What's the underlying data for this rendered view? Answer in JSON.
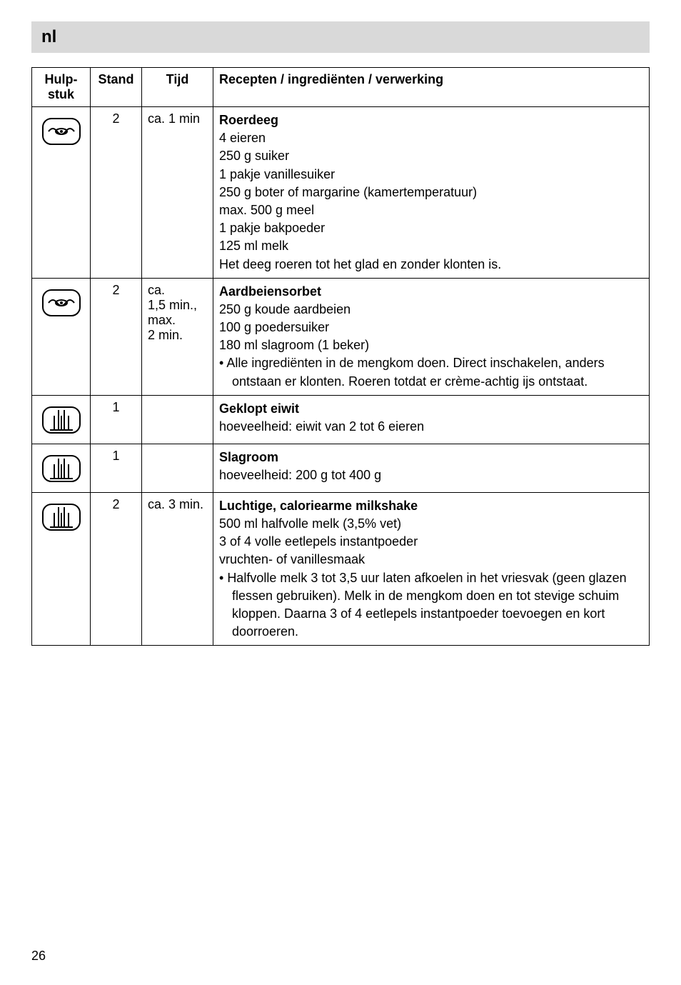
{
  "header": {
    "lang_label": "nl"
  },
  "table": {
    "headers": {
      "hulpstuk": "Hulp-\nstuk",
      "stand": "Stand",
      "tijd": "Tijd",
      "recepten": "Recepten / ingrediënten / verwerking"
    },
    "rows": [
      {
        "icon": "mixer-icon",
        "stand": "2",
        "tijd": "ca. 1 min",
        "title": "Roerdeeg",
        "lines": [
          "4 eieren",
          "250 g suiker",
          "1 pakje vanillesuiker",
          "250 g boter of margarine (kamertemperatuur)",
          "max. 500 g meel",
          "1 pakje bakpoeder",
          "125 ml melk",
          "Het deeg roeren tot het glad en zonder klonten is."
        ],
        "bullets": []
      },
      {
        "icon": "mixer-icon",
        "stand": "2",
        "tijd": "ca.\n1,5 min.,\nmax.\n2 min.",
        "title": "Aardbeiensorbet",
        "lines": [
          "250 g koude aardbeien",
          "100 g poedersuiker",
          "180 ml slagroom (1 beker)"
        ],
        "bullets": [
          "Alle ingrediënten in de mengkom doen. Direct inschakelen, anders ontstaan er klonten. Roeren totdat er crème-achtig ijs ontstaat."
        ]
      },
      {
        "icon": "whisk-icon",
        "stand": "1",
        "tijd": "",
        "title": "Geklopt eiwit",
        "lines": [
          "hoeveelheid: eiwit van 2 tot 6 eieren"
        ],
        "bullets": []
      },
      {
        "icon": "whisk-icon",
        "stand": "1",
        "tijd": "",
        "title": "Slagroom",
        "lines": [
          "hoeveelheid: 200 g tot 400 g"
        ],
        "bullets": []
      },
      {
        "icon": "whisk-icon",
        "stand": "2",
        "tijd": "ca. 3 min.",
        "title": "Luchtige, caloriearme milkshake",
        "lines": [
          "500 ml halfvolle melk (3,5% vet)",
          "3 of 4 volle eetlepels instantpoeder",
          "vruchten- of vanillesmaak"
        ],
        "bullets": [
          "Halfvolle melk 3 tot 3,5 uur laten afkoelen in het vriesvak (geen glazen flessen gebruiken). Melk in de mengkom doen en tot stevige schuim kloppen. Daarna 3 of 4 eetlepels instantpoeder toevoegen en kort doorroeren."
        ]
      }
    ]
  },
  "page_number": "26",
  "styles": {
    "header_bg": "#d9d9d9",
    "text_color": "#000000",
    "border_color": "#000000",
    "body_fontsize": 18,
    "header_fontsize": 24
  }
}
